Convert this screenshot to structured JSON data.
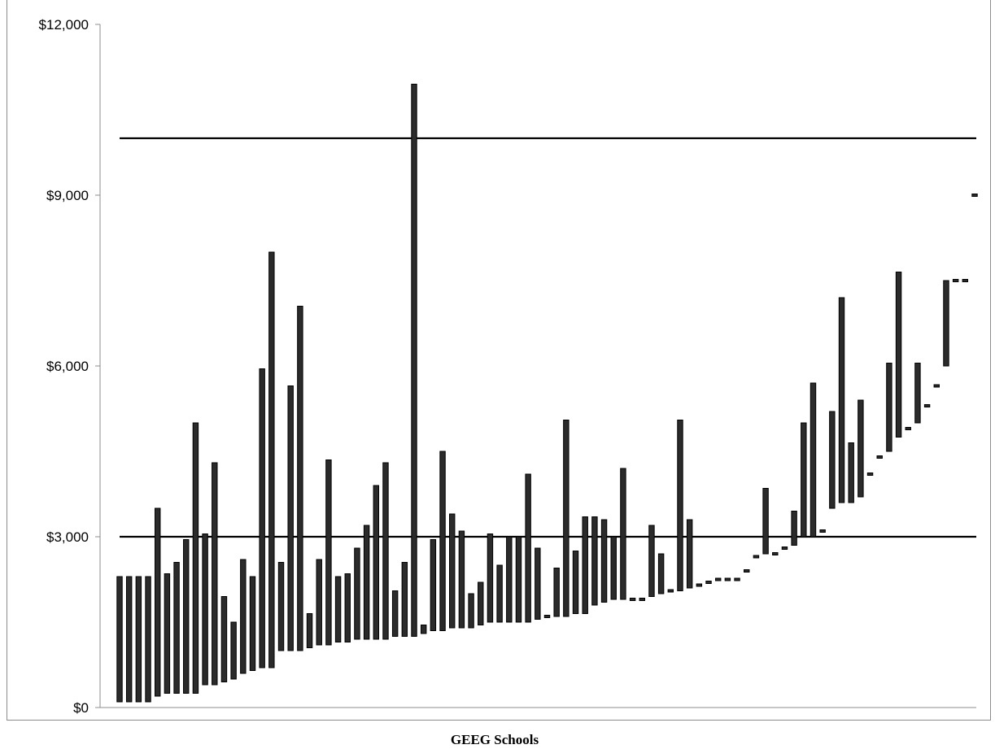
{
  "chart_data": {
    "type": "bar",
    "subtype": "floating-range",
    "title": "",
    "xlabel": "GEEG Schools",
    "ylabel": "",
    "ylim": [
      0,
      12000
    ],
    "yticks": [
      0,
      3000,
      6000,
      9000,
      12000
    ],
    "ytick_labels": [
      "$0",
      "$3,000",
      "$6,000",
      "$9,000",
      "$12,000"
    ],
    "grid": false,
    "legend": "none",
    "bar_color": "#2b2b2b",
    "reference_lines": [
      10000,
      3000
    ],
    "ranges": [
      [
        100,
        2300
      ],
      [
        100,
        2300
      ],
      [
        100,
        2300
      ],
      [
        100,
        2300
      ],
      [
        200,
        3500
      ],
      [
        250,
        2350
      ],
      [
        250,
        2550
      ],
      [
        250,
        2950
      ],
      [
        250,
        5000
      ],
      [
        400,
        3050
      ],
      [
        400,
        4300
      ],
      [
        450,
        1950
      ],
      [
        500,
        1500
      ],
      [
        600,
        2600
      ],
      [
        650,
        2300
      ],
      [
        700,
        5950
      ],
      [
        700,
        8000
      ],
      [
        1000,
        2550
      ],
      [
        1000,
        5650
      ],
      [
        1000,
        7050
      ],
      [
        1050,
        1650
      ],
      [
        1100,
        2600
      ],
      [
        1100,
        4350
      ],
      [
        1150,
        2300
      ],
      [
        1150,
        2350
      ],
      [
        1200,
        2800
      ],
      [
        1200,
        3200
      ],
      [
        1200,
        3900
      ],
      [
        1200,
        4300
      ],
      [
        1250,
        2050
      ],
      [
        1250,
        2550
      ],
      [
        1250,
        10950
      ],
      [
        1300,
        1450
      ],
      [
        1350,
        2950
      ],
      [
        1350,
        4500
      ],
      [
        1400,
        3400
      ],
      [
        1400,
        3100
      ],
      [
        1400,
        2000
      ],
      [
        1450,
        2200
      ],
      [
        1500,
        3050
      ],
      [
        1500,
        2500
      ],
      [
        1500,
        3000
      ],
      [
        1500,
        3000
      ],
      [
        1500,
        4100
      ],
      [
        1550,
        2800
      ],
      [
        1600,
        1600
      ],
      [
        1600,
        2450
      ],
      [
        1600,
        5050
      ],
      [
        1650,
        2750
      ],
      [
        1650,
        3350
      ],
      [
        1800,
        3350
      ],
      [
        1850,
        3300
      ],
      [
        1900,
        3000
      ],
      [
        1900,
        4200
      ],
      [
        1900,
        1900
      ],
      [
        1900,
        1900
      ],
      [
        1950,
        3200
      ],
      [
        2000,
        2700
      ],
      [
        2050,
        2050
      ],
      [
        2050,
        5050
      ],
      [
        2100,
        3300
      ],
      [
        2150,
        2150
      ],
      [
        2200,
        2200
      ],
      [
        2250,
        2250
      ],
      [
        2250,
        2250
      ],
      [
        2250,
        2250
      ],
      [
        2400,
        2400
      ],
      [
        2650,
        2650
      ],
      [
        2700,
        3850
      ],
      [
        2700,
        2700
      ],
      [
        2800,
        2800
      ],
      [
        2850,
        3450
      ],
      [
        3000,
        5000
      ],
      [
        3000,
        5700
      ],
      [
        3100,
        3100
      ],
      [
        3500,
        5200
      ],
      [
        3600,
        7200
      ],
      [
        3600,
        4650
      ],
      [
        3700,
        5400
      ],
      [
        4100,
        4100
      ],
      [
        4400,
        4400
      ],
      [
        4500,
        6050
      ],
      [
        4750,
        7650
      ],
      [
        4900,
        4900
      ],
      [
        5000,
        6050
      ],
      [
        5300,
        5300
      ],
      [
        5650,
        5650
      ],
      [
        6000,
        7500
      ],
      [
        7500,
        7500
      ],
      [
        7500,
        7500
      ],
      [
        9000,
        9000
      ]
    ]
  }
}
